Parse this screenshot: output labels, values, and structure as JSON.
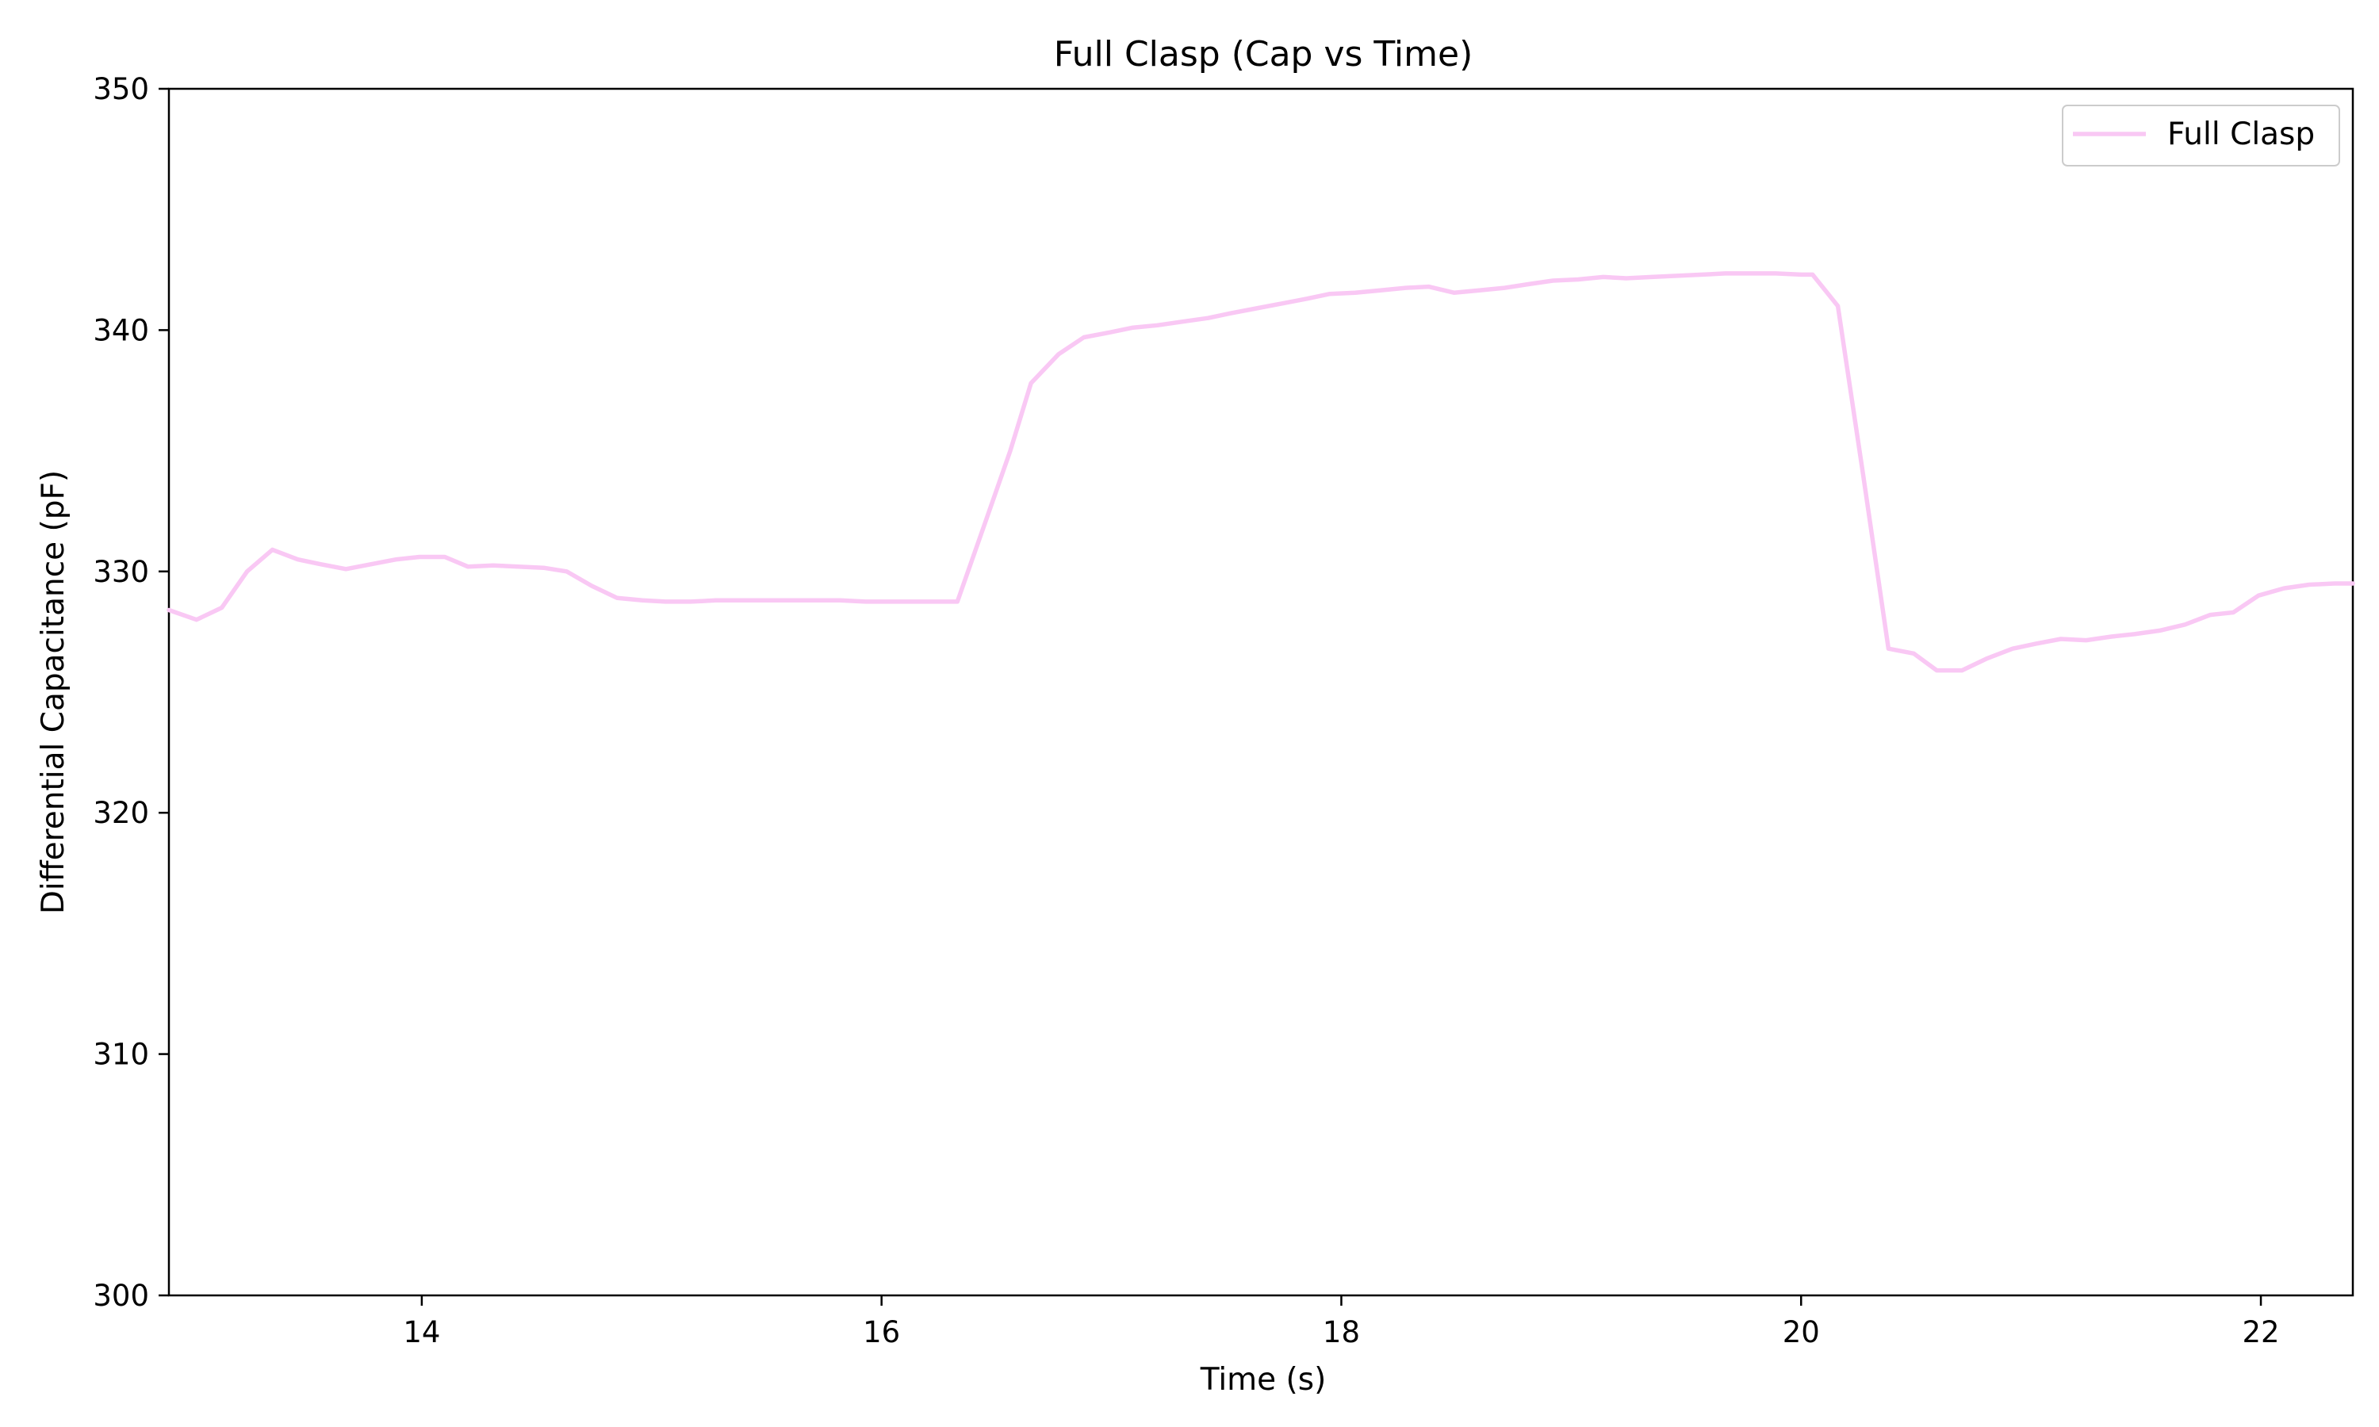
{
  "chart_data": {
    "type": "line",
    "title": "Full Clasp (Cap vs Time)",
    "xlabel": "Time (s)",
    "ylabel": "Differential Capacitance (pF)",
    "xlim": [
      12.9,
      22.4
    ],
    "ylim": [
      300,
      350
    ],
    "xticks": [
      14,
      16,
      18,
      20,
      22
    ],
    "yticks": [
      300,
      310,
      320,
      330,
      340,
      350
    ],
    "grid": false,
    "legend_position": "top-right",
    "series": [
      {
        "name": "Full Clasp",
        "color": "#f9c8f4",
        "x": [
          12.9,
          13.02,
          13.13,
          13.24,
          13.35,
          13.46,
          13.56,
          13.67,
          13.78,
          13.89,
          13.99,
          14.1,
          14.2,
          14.31,
          14.42,
          14.53,
          14.63,
          14.74,
          14.85,
          14.96,
          15.06,
          15.17,
          15.28,
          15.39,
          15.5,
          15.6,
          15.71,
          15.82,
          15.93,
          16.03,
          16.14,
          16.25,
          16.33,
          16.45,
          16.56,
          16.65,
          16.77,
          16.88,
          16.99,
          17.09,
          17.2,
          17.31,
          17.42,
          17.52,
          17.63,
          17.74,
          17.85,
          17.95,
          18.06,
          18.17,
          18.28,
          18.38,
          18.49,
          18.6,
          18.71,
          18.81,
          18.92,
          19.03,
          19.14,
          19.24,
          19.35,
          19.46,
          19.57,
          19.67,
          19.78,
          19.89,
          20.0,
          20.05,
          20.16,
          20.27,
          20.38,
          20.49,
          20.59,
          20.7,
          20.81,
          20.92,
          21.02,
          21.13,
          21.24,
          21.35,
          21.45,
          21.56,
          21.67,
          21.78,
          21.88,
          21.99,
          22.1,
          22.21,
          22.32,
          22.4
        ],
        "y": [
          328.4,
          328.0,
          328.5,
          330.0,
          330.9,
          330.5,
          330.3,
          330.1,
          330.3,
          330.5,
          330.6,
          330.6,
          330.2,
          330.25,
          330.2,
          330.15,
          330.0,
          329.4,
          328.9,
          328.8,
          328.75,
          328.75,
          328.8,
          328.8,
          328.8,
          328.8,
          328.8,
          328.8,
          328.75,
          328.75,
          328.75,
          328.75,
          328.75,
          332.0,
          335.0,
          337.8,
          339.0,
          339.7,
          339.9,
          340.1,
          340.2,
          340.35,
          340.5,
          340.7,
          340.9,
          341.1,
          341.3,
          341.5,
          341.55,
          341.65,
          341.75,
          341.8,
          341.55,
          341.65,
          341.75,
          341.9,
          342.05,
          342.1,
          342.2,
          342.15,
          342.2,
          342.25,
          342.3,
          342.35,
          342.35,
          342.35,
          342.3,
          342.3,
          341.0,
          334.0,
          326.8,
          326.6,
          325.9,
          325.9,
          326.4,
          326.8,
          327.0,
          327.2,
          327.15,
          327.3,
          327.4,
          327.55,
          327.8,
          328.2,
          328.3,
          329.0,
          329.3,
          329.45,
          329.5,
          329.5
        ]
      }
    ]
  }
}
